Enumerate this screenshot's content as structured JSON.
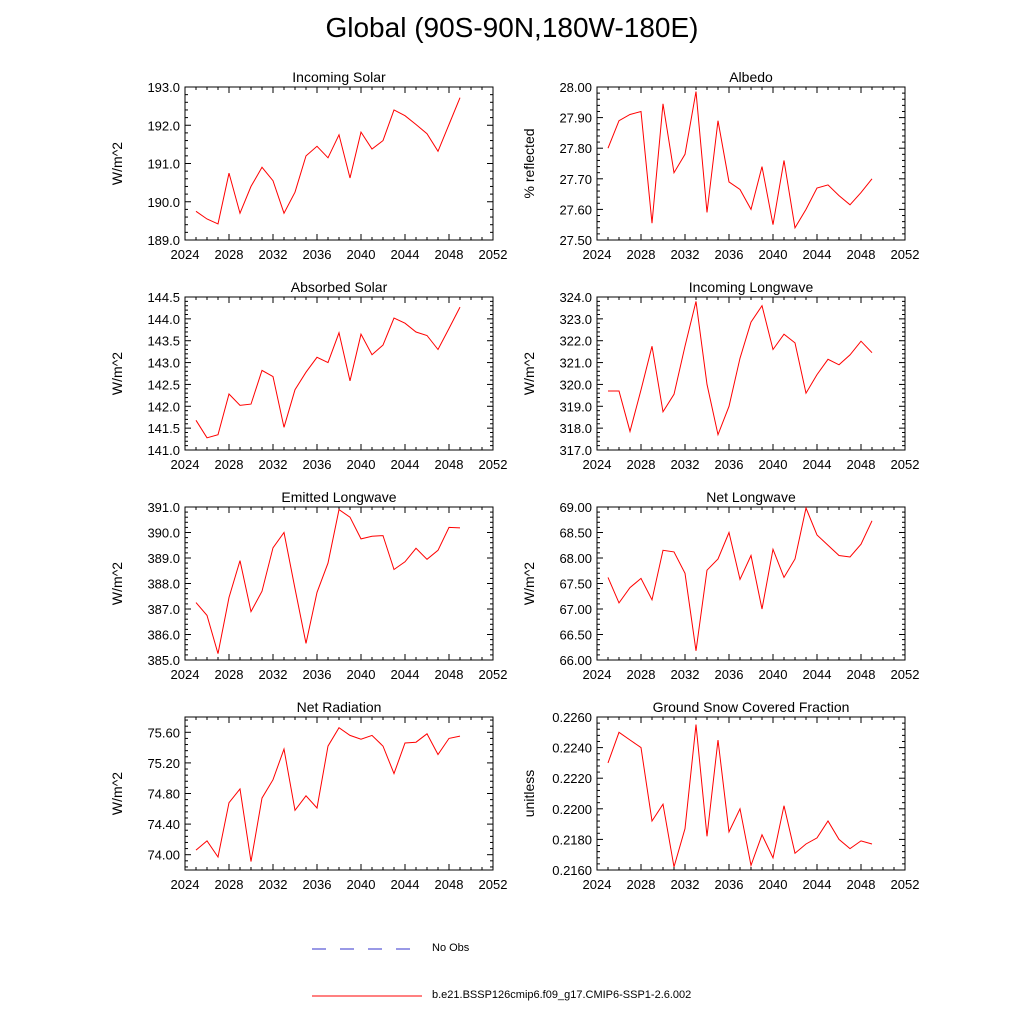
{
  "figure": {
    "title": "Global (90S-90N,180W-180E)",
    "legend": [
      {
        "label": "No Obs",
        "color": "#3333cc",
        "style": "dashed"
      },
      {
        "label": "b.e21.BSSP126cmip6.f09_g17.CMIP6-SSP1-2.6.002",
        "color": "#ff0000",
        "style": "solid"
      }
    ]
  },
  "chart_data": [
    {
      "type": "line",
      "title": "Incoming Solar",
      "ylabel": "W/m^2",
      "xlabel": "",
      "xlim": [
        2024,
        2052
      ],
      "ylim": [
        189.0,
        193.0
      ],
      "xticks": [
        2024,
        2028,
        2032,
        2036,
        2040,
        2044,
        2048,
        2052
      ],
      "xtick_labels": [
        "2024",
        "2028",
        "2032",
        "2036",
        "2040",
        "2044",
        "2048",
        "2052"
      ],
      "yticks": [
        189.0,
        190.0,
        191.0,
        192.0,
        193.0
      ],
      "ytick_labels": [
        "189.0",
        "190.0",
        "191.0",
        "192.0",
        "193.0"
      ],
      "series": [
        {
          "name": "b.e21.BSSP126cmip6.f09_g17.CMIP6-SSP1-2.6.002",
          "color": "#ff0000",
          "x": [
            2025,
            2026,
            2027,
            2028,
            2029,
            2030,
            2031,
            2032,
            2033,
            2034,
            2035,
            2036,
            2037,
            2038,
            2039,
            2040,
            2041,
            2042,
            2043,
            2044,
            2045,
            2046,
            2047,
            2048,
            2049
          ],
          "values": [
            189.75,
            189.55,
            189.42,
            190.75,
            189.7,
            190.4,
            190.9,
            190.55,
            189.7,
            190.25,
            191.2,
            191.45,
            191.15,
            191.75,
            190.62,
            191.82,
            191.38,
            191.6,
            192.4,
            192.25,
            192.02,
            191.78,
            191.32,
            192.02,
            192.72
          ]
        }
      ]
    },
    {
      "type": "line",
      "title": "Albedo",
      "ylabel": "% reflected",
      "xlabel": "",
      "xlim": [
        2024,
        2052
      ],
      "ylim": [
        27.5,
        28.0
      ],
      "xticks": [
        2024,
        2028,
        2032,
        2036,
        2040,
        2044,
        2048,
        2052
      ],
      "xtick_labels": [
        "2024",
        "2028",
        "2032",
        "2036",
        "2040",
        "2044",
        "2048",
        "2052"
      ],
      "yticks": [
        27.5,
        27.6,
        27.7,
        27.8,
        27.9,
        28.0
      ],
      "ytick_labels": [
        "27.50",
        "27.60",
        "27.70",
        "27.80",
        "27.90",
        "28.00"
      ],
      "series": [
        {
          "name": "b.e21.BSSP126cmip6.f09_g17.CMIP6-SSP1-2.6.002",
          "color": "#ff0000",
          "x": [
            2025,
            2026,
            2027,
            2028,
            2029,
            2030,
            2031,
            2032,
            2033,
            2034,
            2035,
            2036,
            2037,
            2038,
            2039,
            2040,
            2041,
            2042,
            2043,
            2044,
            2045,
            2046,
            2047,
            2048,
            2049
          ],
          "values": [
            27.8,
            27.89,
            27.91,
            27.92,
            27.555,
            27.945,
            27.72,
            27.78,
            27.985,
            27.59,
            27.89,
            27.69,
            27.665,
            27.6,
            27.74,
            27.55,
            27.76,
            27.54,
            27.6,
            27.67,
            27.68,
            27.645,
            27.615,
            27.655,
            27.7
          ]
        }
      ]
    },
    {
      "type": "line",
      "title": "Absorbed Solar",
      "ylabel": "W/m^2",
      "xlabel": "",
      "xlim": [
        2024,
        2052
      ],
      "ylim": [
        141.0,
        144.5
      ],
      "xticks": [
        2024,
        2028,
        2032,
        2036,
        2040,
        2044,
        2048,
        2052
      ],
      "xtick_labels": [
        "2024",
        "2028",
        "2032",
        "2036",
        "2040",
        "2044",
        "2048",
        "2052"
      ],
      "yticks": [
        141.0,
        141.5,
        142.0,
        142.5,
        143.0,
        143.5,
        144.0,
        144.5
      ],
      "ytick_labels": [
        "141.0",
        "141.5",
        "142.0",
        "142.5",
        "143.0",
        "143.5",
        "144.0",
        "144.5"
      ],
      "series": [
        {
          "name": "b.e21.BSSP126cmip6.f09_g17.CMIP6-SSP1-2.6.002",
          "color": "#ff0000",
          "x": [
            2025,
            2026,
            2027,
            2028,
            2029,
            2030,
            2031,
            2032,
            2033,
            2034,
            2035,
            2036,
            2037,
            2038,
            2039,
            2040,
            2041,
            2042,
            2043,
            2044,
            2045,
            2046,
            2047,
            2048,
            2049
          ],
          "values": [
            141.68,
            141.28,
            141.35,
            142.28,
            142.02,
            142.05,
            142.82,
            142.68,
            141.52,
            142.38,
            142.78,
            143.12,
            143.0,
            143.68,
            142.58,
            143.65,
            143.18,
            143.4,
            144.02,
            143.9,
            143.7,
            143.62,
            143.3,
            143.78,
            144.27
          ]
        }
      ]
    },
    {
      "type": "line",
      "title": "Incoming Longwave",
      "ylabel": "W/m^2",
      "xlabel": "",
      "xlim": [
        2024,
        2052
      ],
      "ylim": [
        317.0,
        324.0
      ],
      "xticks": [
        2024,
        2028,
        2032,
        2036,
        2040,
        2044,
        2048,
        2052
      ],
      "xtick_labels": [
        "2024",
        "2028",
        "2032",
        "2036",
        "2040",
        "2044",
        "2048",
        "2052"
      ],
      "yticks": [
        317.0,
        318.0,
        319.0,
        320.0,
        321.0,
        322.0,
        323.0,
        324.0
      ],
      "ytick_labels": [
        "317.0",
        "318.0",
        "319.0",
        "320.0",
        "321.0",
        "322.0",
        "323.0",
        "324.0"
      ],
      "series": [
        {
          "name": "b.e21.BSSP126cmip6.f09_g17.CMIP6-SSP1-2.6.002",
          "color": "#ff0000",
          "x": [
            2025,
            2026,
            2027,
            2028,
            2029,
            2030,
            2031,
            2032,
            2033,
            2034,
            2035,
            2036,
            2037,
            2038,
            2039,
            2040,
            2041,
            2042,
            2043,
            2044,
            2045,
            2046,
            2047,
            2048,
            2049
          ],
          "values": [
            319.7,
            319.7,
            317.85,
            319.75,
            321.75,
            318.75,
            319.55,
            321.75,
            323.8,
            320.0,
            317.7,
            319.0,
            321.2,
            322.85,
            323.6,
            321.6,
            322.3,
            321.9,
            319.6,
            320.45,
            321.15,
            320.9,
            321.35,
            321.98,
            321.45
          ]
        }
      ]
    },
    {
      "type": "line",
      "title": "Emitted Longwave",
      "ylabel": "W/m^2",
      "xlabel": "",
      "xlim": [
        2024,
        2052
      ],
      "ylim": [
        385.0,
        391.0
      ],
      "xticks": [
        2024,
        2028,
        2032,
        2036,
        2040,
        2044,
        2048,
        2052
      ],
      "xtick_labels": [
        "2024",
        "2028",
        "2032",
        "2036",
        "2040",
        "2044",
        "2048",
        "2052"
      ],
      "yticks": [
        385.0,
        386.0,
        387.0,
        388.0,
        389.0,
        390.0,
        391.0
      ],
      "ytick_labels": [
        "385.0",
        "386.0",
        "387.0",
        "388.0",
        "389.0",
        "390.0",
        "391.0"
      ],
      "series": [
        {
          "name": "b.e21.BSSP126cmip6.f09_g17.CMIP6-SSP1-2.6.002",
          "color": "#ff0000",
          "x": [
            2025,
            2026,
            2027,
            2028,
            2029,
            2030,
            2031,
            2032,
            2033,
            2034,
            2035,
            2036,
            2037,
            2038,
            2039,
            2040,
            2041,
            2042,
            2043,
            2044,
            2045,
            2046,
            2047,
            2048,
            2049
          ],
          "values": [
            387.25,
            386.75,
            385.25,
            387.45,
            388.9,
            386.9,
            387.7,
            389.4,
            390.0,
            387.8,
            385.65,
            387.65,
            388.8,
            390.9,
            390.6,
            389.75,
            389.85,
            389.88,
            388.55,
            388.85,
            389.38,
            388.95,
            389.3,
            390.2,
            390.18
          ]
        }
      ]
    },
    {
      "type": "line",
      "title": "Net Longwave",
      "ylabel": "W/m^2",
      "xlabel": "",
      "xlim": [
        2024,
        2052
      ],
      "ylim": [
        66.0,
        69.0
      ],
      "xticks": [
        2024,
        2028,
        2032,
        2036,
        2040,
        2044,
        2048,
        2052
      ],
      "xtick_labels": [
        "2024",
        "2028",
        "2032",
        "2036",
        "2040",
        "2044",
        "2048",
        "2052"
      ],
      "yticks": [
        66.0,
        66.5,
        67.0,
        67.5,
        68.0,
        68.5,
        69.0
      ],
      "ytick_labels": [
        "66.00",
        "66.50",
        "67.00",
        "67.50",
        "68.00",
        "68.50",
        "69.00"
      ],
      "series": [
        {
          "name": "b.e21.BSSP126cmip6.f09_g17.CMIP6-SSP1-2.6.002",
          "color": "#ff0000",
          "x": [
            2025,
            2026,
            2027,
            2028,
            2029,
            2030,
            2031,
            2032,
            2033,
            2034,
            2035,
            2036,
            2037,
            2038,
            2039,
            2040,
            2041,
            2042,
            2043,
            2044,
            2045,
            2046,
            2047,
            2048,
            2049
          ],
          "values": [
            67.62,
            67.12,
            67.42,
            67.6,
            67.18,
            68.15,
            68.12,
            67.7,
            66.18,
            67.76,
            67.98,
            68.5,
            67.58,
            68.05,
            67.0,
            68.17,
            67.62,
            67.98,
            68.98,
            68.45,
            68.25,
            68.05,
            68.02,
            68.27,
            68.73
          ]
        }
      ]
    },
    {
      "type": "line",
      "title": "Net Radiation",
      "ylabel": "W/m^2",
      "xlabel": "",
      "xlim": [
        2024,
        2052
      ],
      "ylim": [
        73.8,
        75.8
      ],
      "xticks": [
        2024,
        2028,
        2032,
        2036,
        2040,
        2044,
        2048,
        2052
      ],
      "xtick_labels": [
        "2024",
        "2028",
        "2032",
        "2036",
        "2040",
        "2044",
        "2048",
        "2052"
      ],
      "yticks": [
        74.0,
        74.4,
        74.8,
        75.2,
        75.6
      ],
      "ytick_labels": [
        "74.00",
        "74.40",
        "74.80",
        "75.20",
        "75.60"
      ],
      "series": [
        {
          "name": "b.e21.BSSP126cmip6.f09_g17.CMIP6-SSP1-2.6.002",
          "color": "#ff0000",
          "x": [
            2025,
            2026,
            2027,
            2028,
            2029,
            2030,
            2031,
            2032,
            2033,
            2034,
            2035,
            2036,
            2037,
            2038,
            2039,
            2040,
            2041,
            2042,
            2043,
            2044,
            2045,
            2046,
            2047,
            2048,
            2049
          ],
          "values": [
            74.06,
            74.18,
            73.97,
            74.68,
            74.86,
            73.91,
            74.74,
            74.98,
            75.38,
            74.58,
            74.77,
            74.61,
            75.42,
            75.66,
            75.56,
            75.51,
            75.56,
            75.42,
            75.06,
            75.46,
            75.47,
            75.58,
            75.31,
            75.52,
            75.55
          ]
        }
      ]
    },
    {
      "type": "line",
      "title": "Ground Snow Covered Fraction",
      "ylabel": "unitless",
      "xlabel": "",
      "xlim": [
        2024,
        2052
      ],
      "ylim": [
        0.216,
        0.226
      ],
      "xticks": [
        2024,
        2028,
        2032,
        2036,
        2040,
        2044,
        2048,
        2052
      ],
      "xtick_labels": [
        "2024",
        "2028",
        "2032",
        "2036",
        "2040",
        "2044",
        "2048",
        "2052"
      ],
      "yticks": [
        0.216,
        0.218,
        0.22,
        0.222,
        0.224,
        0.226
      ],
      "ytick_labels": [
        "0.2160",
        "0.2180",
        "0.2200",
        "0.2220",
        "0.2240",
        "0.2260"
      ],
      "series": [
        {
          "name": "b.e21.BSSP126cmip6.f09_g17.CMIP6-SSP1-2.6.002",
          "color": "#ff0000",
          "x": [
            2025,
            2026,
            2027,
            2028,
            2029,
            2030,
            2031,
            2032,
            2033,
            2034,
            2035,
            2036,
            2037,
            2038,
            2039,
            2040,
            2041,
            2042,
            2043,
            2044,
            2045,
            2046,
            2047,
            2048,
            2049
          ],
          "values": [
            0.223,
            0.225,
            0.2245,
            0.224,
            0.2192,
            0.2203,
            0.2162,
            0.2187,
            0.2255,
            0.2182,
            0.2245,
            0.2185,
            0.22,
            0.2163,
            0.2183,
            0.2168,
            0.2202,
            0.2171,
            0.2177,
            0.2181,
            0.2192,
            0.218,
            0.2174,
            0.2179,
            0.2177
          ]
        }
      ]
    }
  ]
}
